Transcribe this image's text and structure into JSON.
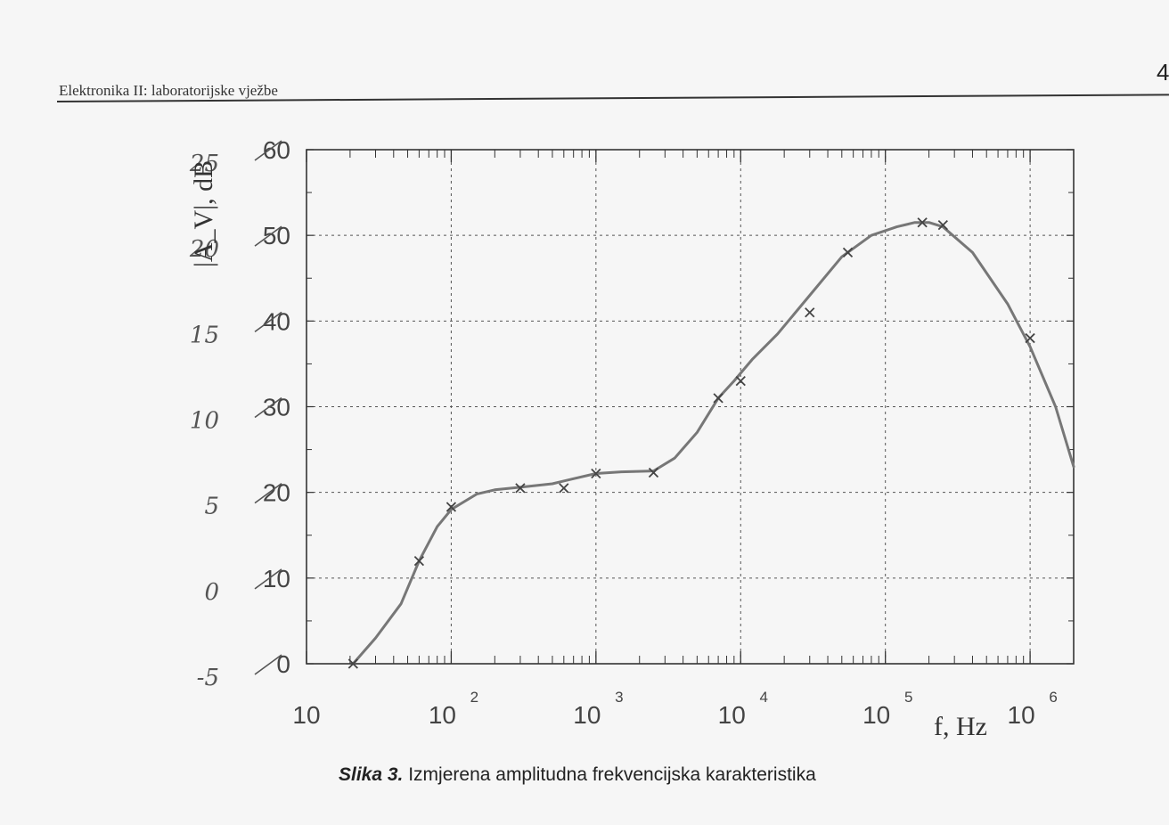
{
  "header": {
    "title": "Elektronika II: laboratorijske vježbe",
    "page_number": "4"
  },
  "caption": {
    "label": "Slika 3.",
    "text": " Izmjerena amplitudna frekvencijska karakteristika"
  },
  "chart_data": {
    "type": "line",
    "title": "",
    "xlabel": "f, Hz",
    "ylabel": "|A_V|, dB",
    "x_scale": "log",
    "xlim": [
      10,
      2000000
    ],
    "ylim": [
      0,
      60
    ],
    "grid": true,
    "x_tick_labels": [
      {
        "base": "10",
        "exp": "",
        "value": 10
      },
      {
        "base": "10",
        "exp": "2",
        "value": 100
      },
      {
        "base": "10",
        "exp": "3",
        "value": 1000
      },
      {
        "base": "10",
        "exp": "4",
        "value": 10000
      },
      {
        "base": "10",
        "exp": "5",
        "value": 100000
      },
      {
        "base": "10",
        "exp": "6",
        "value": 1000000
      }
    ],
    "y_tick_labels": [
      "0",
      "10",
      "20",
      "30",
      "40",
      "50",
      "60"
    ],
    "y_handwritten_labels": [
      "-5",
      "0",
      "5",
      "10",
      "15",
      "20",
      "25"
    ],
    "curve": {
      "x": [
        21,
        30,
        45,
        60,
        80,
        100,
        150,
        200,
        300,
        500,
        700,
        1000,
        1500,
        2500,
        3500,
        5000,
        7000,
        9000,
        12000,
        18000,
        30000,
        50000,
        80000,
        120000,
        160000,
        200000,
        250000,
        400000,
        700000,
        1000000,
        1500000,
        2000000
      ],
      "y": [
        0,
        3,
        7,
        12,
        16,
        18,
        19.8,
        20.3,
        20.6,
        21,
        21.6,
        22.2,
        22.4,
        22.5,
        24,
        27,
        31,
        33,
        35.5,
        38.5,
        43,
        47.5,
        50,
        51,
        51.5,
        51.5,
        51,
        48,
        42,
        37,
        30,
        23
      ]
    },
    "markers": {
      "x": [
        21,
        60,
        100,
        300,
        600,
        1000,
        2500,
        7000,
        10000,
        30000,
        55000,
        180000,
        250000,
        1000000
      ],
      "y": [
        0,
        12,
        18.3,
        20.5,
        20.5,
        22.2,
        22.3,
        31,
        33,
        41,
        48,
        51.5,
        51.2,
        38
      ]
    }
  }
}
